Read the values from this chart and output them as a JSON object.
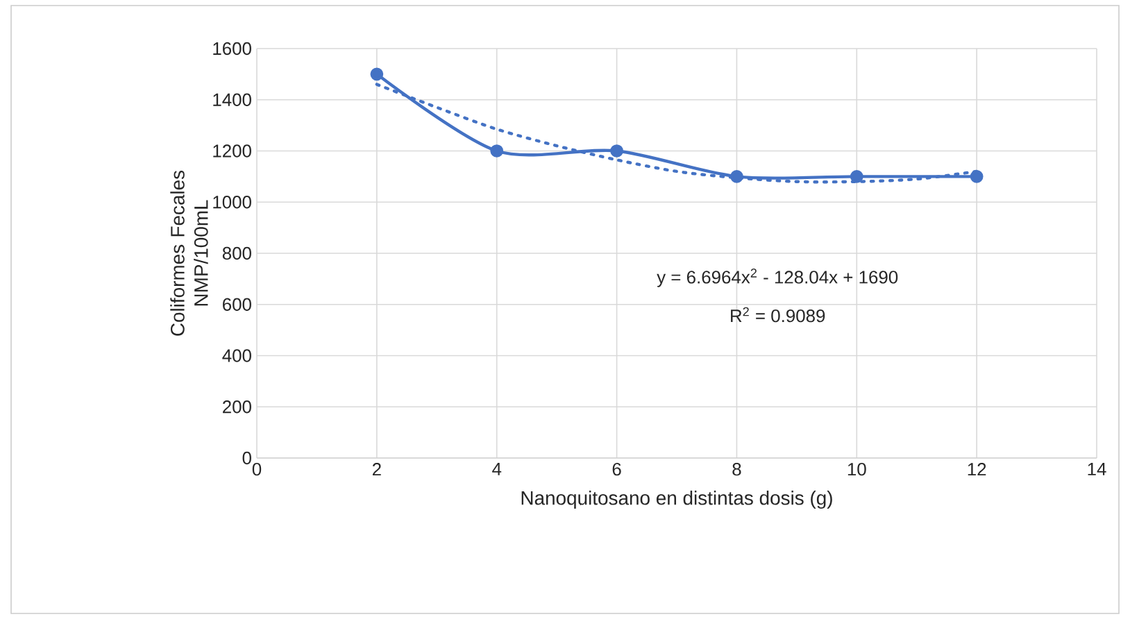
{
  "chart_data": {
    "type": "line",
    "xlabel": "Nanoquitosano en distintas dosis (g)",
    "ylabel": "Coliformes Fecales NMP/100mL",
    "series": [
      {
        "color": "#4472c4",
        "x": [
          2,
          4,
          6,
          8,
          10,
          12
        ],
        "values": [
          1500,
          1200,
          1200,
          1100,
          1100,
          1100
        ],
        "marker": "circle",
        "line_style": "solid"
      },
      {
        "color": "#4472c4",
        "x": [
          2,
          3,
          4,
          5,
          6,
          7,
          8,
          9,
          10,
          11,
          12
        ],
        "values": [
          1460,
          1370,
          1285,
          1220,
          1165,
          1120,
          1095,
          1080,
          1080,
          1090,
          1120
        ],
        "marker": "none",
        "line_style": "dotted"
      }
    ],
    "xlim": [
      0,
      14
    ],
    "xticks": [
      0,
      2,
      4,
      6,
      8,
      10,
      12,
      14
    ],
    "ylim": [
      0,
      1600
    ],
    "yticks": [
      0,
      200,
      400,
      600,
      800,
      1000,
      1200,
      1400,
      1600
    ],
    "grid": true,
    "annotations": [
      "y = 6.6964x$^{2}$ - 128.04x + 1690",
      "R$^{2}$ = 0.9089"
    ]
  }
}
